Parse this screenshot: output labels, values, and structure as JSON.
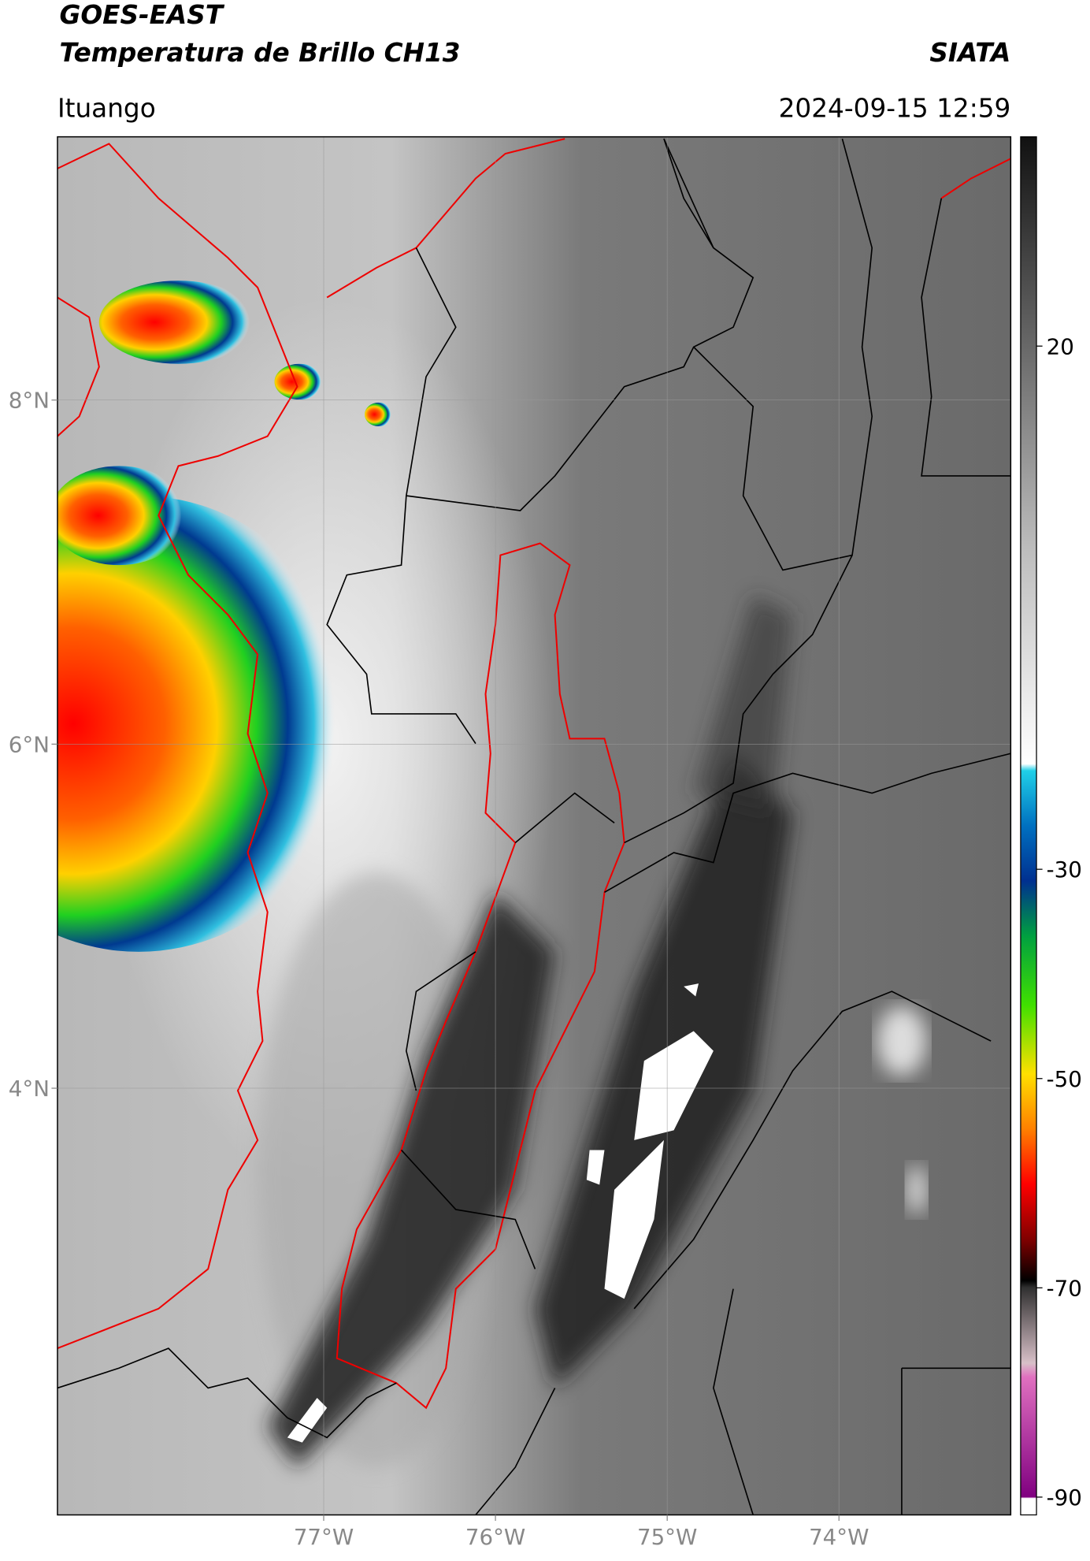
{
  "header": {
    "satellite": "GOES-EAST",
    "product": "Temperatura de Brillo CH13",
    "brand": "SIATA",
    "region": "Ituango",
    "datetime": "2024-09-15 12:59"
  },
  "map": {
    "lon_range": [
      -78.55,
      -73.0
    ],
    "lat_range": [
      1.52,
      9.53
    ],
    "lat_ticks": [
      {
        "value": 8,
        "label": "8°N"
      },
      {
        "value": 6,
        "label": "6°N"
      },
      {
        "value": 4,
        "label": "4°N"
      }
    ],
    "lon_ticks": [
      {
        "value": -77,
        "label": "77°W"
      },
      {
        "value": -76,
        "label": "76°W"
      },
      {
        "value": -75,
        "label": "75°W"
      },
      {
        "value": -74,
        "label": "74°W"
      }
    ],
    "grid": true
  },
  "colorbar": {
    "range": [
      -91.7,
      40
    ],
    "ticks": [
      20,
      -30,
      -50,
      -70,
      -90
    ]
  }
}
